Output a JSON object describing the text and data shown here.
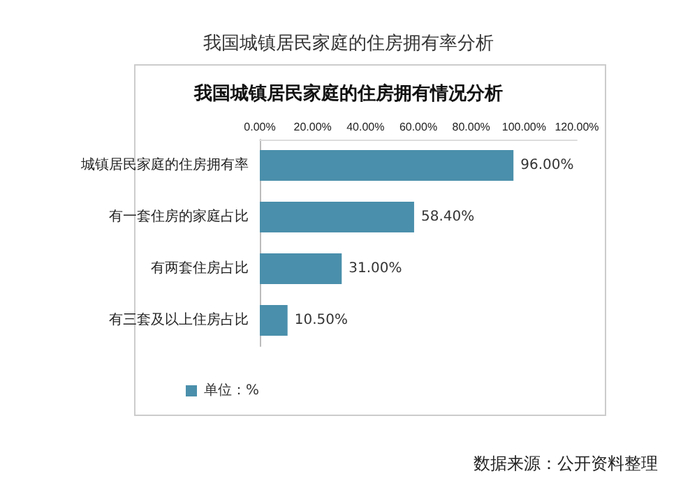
{
  "chart_data": {
    "type": "bar",
    "orientation": "horizontal",
    "title": "我国城镇居民家庭的住房拥有率分析",
    "subtitle": "我国城镇居民家庭的住房拥有情况分析",
    "categories": [
      "城镇居民家庭的住房拥有率",
      "有一套住房的家庭占比",
      "有两套住房占比",
      "有三套及以上住房占比"
    ],
    "series": [
      {
        "name": "单位：%",
        "color": "#4a8fab",
        "values": [
          96,
          58.4,
          31,
          10.5
        ],
        "value_labels": [
          "96.00%",
          "58.40%",
          "31.00%",
          "10.50%"
        ]
      }
    ],
    "xlim": [
      0,
      120
    ],
    "xticks": [
      {
        "value": 0,
        "label": "0.00%"
      },
      {
        "value": 20,
        "label": "20.00%"
      },
      {
        "value": 40,
        "label": "40.00%"
      },
      {
        "value": 60,
        "label": "60.00%"
      },
      {
        "value": 80,
        "label": "80.00%"
      },
      {
        "value": 100,
        "label": "100.00%"
      },
      {
        "value": 120,
        "label": "120.00%"
      }
    ],
    "grid": false,
    "legend": "bottom",
    "annotations": [
      "数据来源：公开资料整理"
    ]
  }
}
